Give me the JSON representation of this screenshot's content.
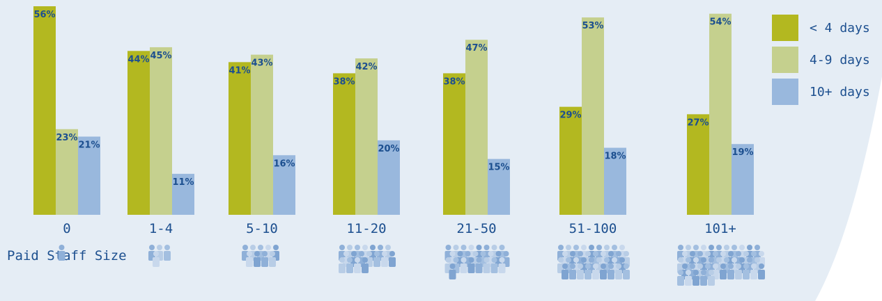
{
  "chart_data": {
    "type": "bar",
    "xlabel": "Paid Staff Size",
    "ylabel": "",
    "ylim": [
      0,
      56
    ],
    "categories": [
      "0",
      "1-4",
      "5-10",
      "11-20",
      "21-50",
      "51-100",
      "101+"
    ],
    "series": [
      {
        "name": "< 4 days",
        "color": "#b3b820",
        "values": [
          56,
          44,
          41,
          38,
          38,
          29,
          27
        ]
      },
      {
        "name": "4-9 days",
        "color": "#c5d08e",
        "values": [
          23,
          45,
          43,
          42,
          47,
          53,
          54
        ]
      },
      {
        "name": "10+ days",
        "color": "#99b8dd",
        "values": [
          21,
          11,
          16,
          20,
          15,
          18,
          19
        ]
      }
    ],
    "value_suffix": "%",
    "legend_position": "right",
    "grid": false,
    "staff_icon_counts": [
      1,
      4,
      9,
      18,
      25,
      36,
      49
    ]
  }
}
